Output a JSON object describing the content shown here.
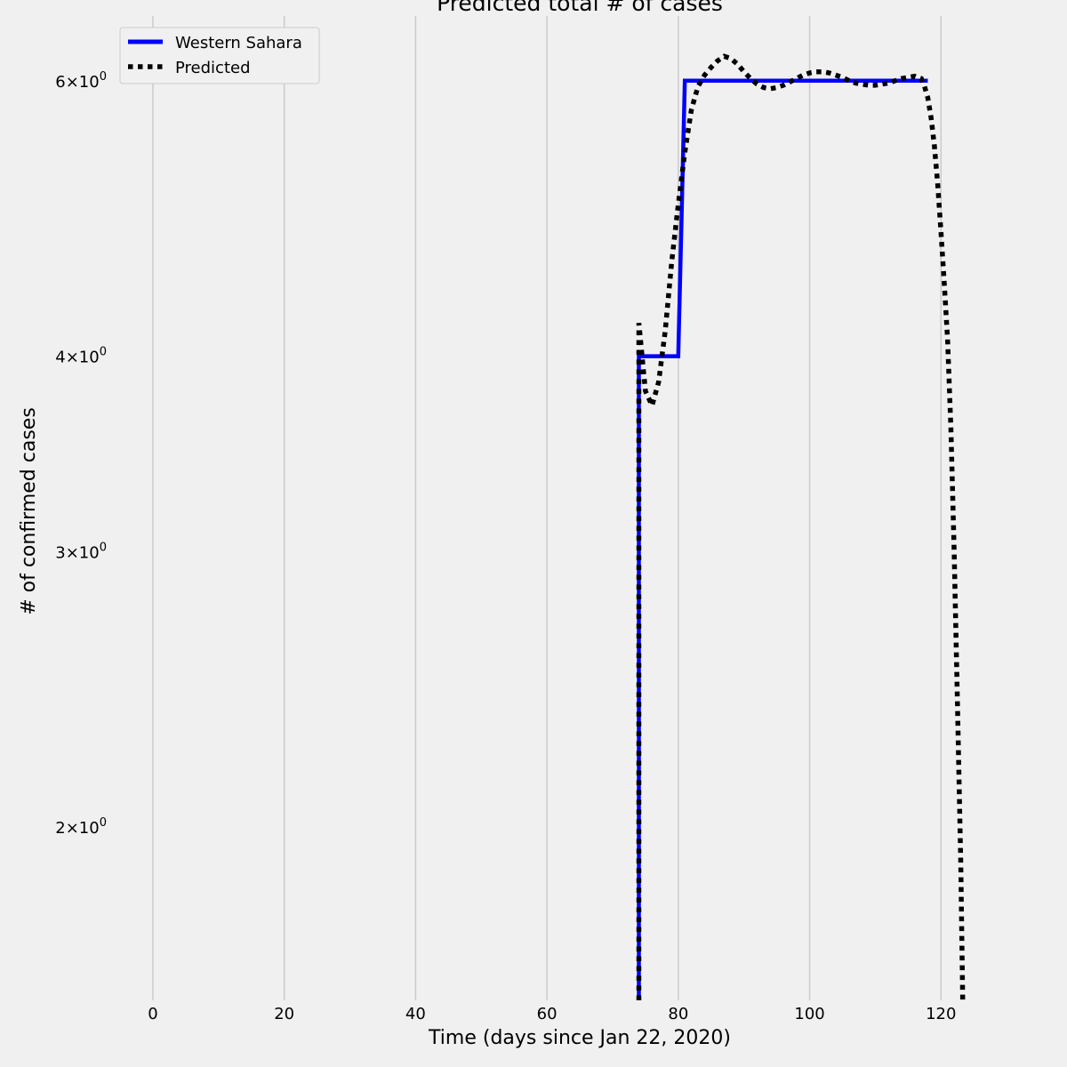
{
  "chart_data": {
    "type": "line",
    "title": "Predicted total # of cases",
    "xlabel": "Time (days since Jan 22, 2020)",
    "ylabel": "# of confirmed cases",
    "xlim": [
      -5,
      127
    ],
    "ylim": [
      1.55,
      6.6
    ],
    "yscale": "log",
    "grid": "vertical",
    "legend_position": "top-left",
    "x_ticks": [
      {
        "value": 0,
        "label": "0"
      },
      {
        "value": 20,
        "label": "20"
      },
      {
        "value": 40,
        "label": "40"
      },
      {
        "value": 60,
        "label": "60"
      },
      {
        "value": 80,
        "label": "80"
      },
      {
        "value": 100,
        "label": "100"
      },
      {
        "value": 120,
        "label": "120"
      }
    ],
    "y_ticks": [
      {
        "value": 2,
        "base": "2",
        "exp": "0"
      },
      {
        "value": 3,
        "base": "3",
        "exp": "0"
      },
      {
        "value": 4,
        "base": "4",
        "exp": "0"
      },
      {
        "value": 6,
        "base": "6",
        "exp": "0"
      }
    ],
    "series": [
      {
        "name": "Western Sahara",
        "color": "#0000ff",
        "style": "solid",
        "points": [
          [
            74,
            1.55
          ],
          [
            74,
            4
          ],
          [
            80,
            4
          ],
          [
            81,
            6
          ],
          [
            118,
            6
          ]
        ]
      },
      {
        "name": "Predicted",
        "color": "#000000",
        "style": "dotted",
        "points": [
          [
            74,
            1.55
          ],
          [
            74,
            4.2
          ],
          [
            75,
            3.8
          ],
          [
            76,
            3.72
          ],
          [
            77,
            3.85
          ],
          [
            78,
            4.15
          ],
          [
            79,
            4.6
          ],
          [
            80,
            5.0
          ],
          [
            81,
            5.4
          ],
          [
            82,
            5.75
          ],
          [
            83,
            5.95
          ],
          [
            84,
            6.05
          ],
          [
            85,
            6.12
          ],
          [
            86,
            6.18
          ],
          [
            87,
            6.22
          ],
          [
            88,
            6.2
          ],
          [
            89,
            6.15
          ],
          [
            90,
            6.08
          ],
          [
            91,
            6.02
          ],
          [
            92,
            5.97
          ],
          [
            93,
            5.94
          ],
          [
            94,
            5.93
          ],
          [
            95,
            5.94
          ],
          [
            96,
            5.96
          ],
          [
            97,
            5.99
          ],
          [
            98,
            6.02
          ],
          [
            99,
            6.05
          ],
          [
            100,
            6.07
          ],
          [
            101,
            6.08
          ],
          [
            102,
            6.08
          ],
          [
            103,
            6.07
          ],
          [
            104,
            6.05
          ],
          [
            105,
            6.03
          ],
          [
            106,
            6.0
          ],
          [
            107,
            5.98
          ],
          [
            108,
            5.97
          ],
          [
            109,
            5.96
          ],
          [
            110,
            5.96
          ],
          [
            111,
            5.97
          ],
          [
            112,
            5.98
          ],
          [
            113,
            6.0
          ],
          [
            114,
            6.02
          ],
          [
            115,
            6.03
          ],
          [
            116,
            6.04
          ],
          [
            117,
            6.02
          ],
          [
            117.5,
            5.95
          ],
          [
            118,
            5.85
          ],
          [
            118.5,
            5.68
          ],
          [
            119,
            5.45
          ],
          [
            119.5,
            5.15
          ],
          [
            120,
            4.8
          ],
          [
            120.5,
            4.45
          ],
          [
            121,
            4.1
          ],
          [
            121.5,
            3.6
          ],
          [
            122,
            3.0
          ],
          [
            122.5,
            2.4
          ],
          [
            123,
            1.9
          ],
          [
            123.3,
            1.55
          ]
        ]
      }
    ]
  }
}
